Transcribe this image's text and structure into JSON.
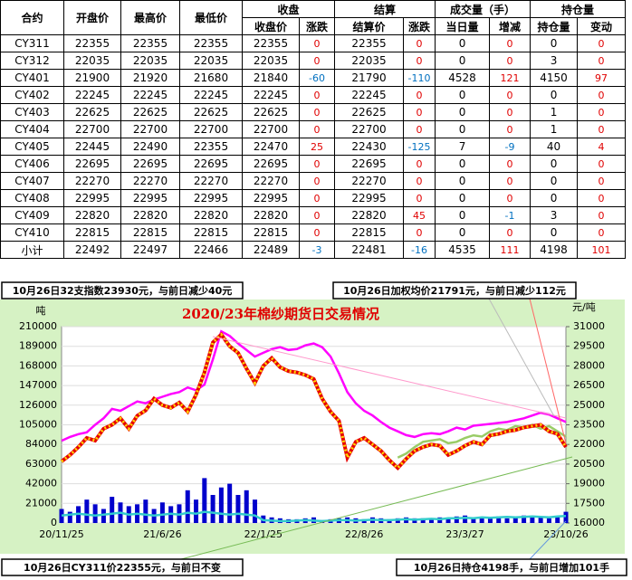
{
  "table": {
    "group_headers": [
      "收盘",
      "结算",
      "成交量（手）",
      "持仓量"
    ],
    "headers": [
      "合约",
      "开盘价",
      "最高价",
      "最低价",
      "收盘价",
      "涨跌",
      "结算价",
      "涨跌",
      "当日量",
      "增减",
      "持仓量",
      "变动"
    ],
    "rows": [
      [
        "CY311",
        22355,
        22355,
        22355,
        22355,
        0,
        22355,
        0,
        0,
        0,
        0,
        0
      ],
      [
        "CY312",
        22035,
        22035,
        22035,
        22035,
        0,
        22035,
        0,
        0,
        0,
        3,
        0
      ],
      [
        "CY401",
        21900,
        21920,
        21680,
        21840,
        -60,
        21790,
        -110,
        4528,
        121,
        4150,
        97
      ],
      [
        "CY402",
        22245,
        22245,
        22245,
        22245,
        0,
        22245,
        0,
        0,
        0,
        0,
        0
      ],
      [
        "CY403",
        22625,
        22625,
        22625,
        22625,
        0,
        22625,
        0,
        0,
        0,
        1,
        0
      ],
      [
        "CY404",
        22700,
        22700,
        22700,
        22700,
        0,
        22700,
        0,
        0,
        0,
        1,
        0
      ],
      [
        "CY405",
        22445,
        22490,
        22355,
        22470,
        25,
        22430,
        -125,
        7,
        -9,
        40,
        4
      ],
      [
        "CY406",
        22695,
        22695,
        22695,
        22695,
        0,
        22695,
        0,
        0,
        0,
        0,
        0
      ],
      [
        "CY407",
        22270,
        22270,
        22270,
        22270,
        0,
        22270,
        0,
        0,
        0,
        0,
        0
      ],
      [
        "CY408",
        22995,
        22995,
        22995,
        22995,
        0,
        22995,
        0,
        0,
        0,
        0,
        0
      ],
      [
        "CY409",
        22820,
        22820,
        22820,
        22820,
        0,
        22820,
        45,
        0,
        -1,
        3,
        0
      ],
      [
        "CY410",
        22815,
        22815,
        22815,
        22815,
        0,
        22815,
        0,
        0,
        0,
        0,
        0
      ],
      [
        "小计",
        22492,
        22497,
        22466,
        22489,
        -3,
        22481,
        -16,
        4535,
        111,
        4198,
        101
      ]
    ]
  },
  "notes": [
    "10月26日32支指数23930元，与前日减少40元",
    "10月26日加权均价21791元，与前日减少112元",
    "10月26日CY311价22355元，与前日不变",
    "10月26日持仓4198手，与前日增加101手"
  ],
  "chart_data": {
    "type": "combo",
    "title": "2020/23年棉纱期货日交易情况",
    "y_label": "吨",
    "y2_label": "元/吨",
    "categories": [
      "20/11/25",
      null,
      null,
      null,
      null,
      null,
      null,
      null,
      null,
      null,
      null,
      null,
      "21/6/26",
      null,
      null,
      null,
      null,
      null,
      null,
      null,
      null,
      null,
      null,
      null,
      "22/1/25",
      null,
      null,
      null,
      null,
      null,
      null,
      null,
      null,
      null,
      null,
      null,
      "22/8/26",
      null,
      null,
      null,
      null,
      null,
      null,
      null,
      null,
      null,
      null,
      null,
      "23/3/27",
      null,
      null,
      null,
      null,
      null,
      null,
      null,
      null,
      null,
      null,
      null,
      "23/10/26"
    ],
    "ylim": [
      0,
      210000
    ],
    "yticks": [
      0,
      21000,
      42000,
      63000,
      84000,
      105000,
      126000,
      147000,
      168000,
      189000,
      210000
    ],
    "y2lim": [
      16000,
      31000
    ],
    "y2ticks": [
      16000,
      17500,
      19000,
      20500,
      22000,
      23500,
      25000,
      26500,
      28000,
      29500,
      31000
    ],
    "series": [
      {
        "kind": "bar",
        "axis": "y",
        "color": "#0000cc",
        "values": [
          15000,
          12000,
          18000,
          25000,
          20000,
          15000,
          28000,
          22000,
          18000,
          20000,
          25000,
          15000,
          22000,
          18000,
          20000,
          35000,
          25000,
          48000,
          30000,
          38000,
          42000,
          30000,
          35000,
          25000,
          8000,
          6000,
          5000,
          4000,
          4000,
          5000,
          6000,
          3000,
          4000,
          5000,
          6000,
          5000,
          4000,
          6000,
          5000,
          4000,
          5000,
          6000,
          5000,
          5000,
          4000,
          6000,
          5000,
          7000,
          8000,
          6000,
          5000,
          6000,
          7000,
          5000,
          6000,
          8000,
          7000,
          6000,
          5000,
          7000,
          12000
        ]
      },
      {
        "kind": "line",
        "axis": "y",
        "color": "#33cccc",
        "values": [
          8000,
          9000,
          10000,
          9000,
          8000,
          9000,
          10000,
          11000,
          9000,
          10000,
          9000,
          8000,
          9000,
          10000,
          9000,
          11000,
          10000,
          12000,
          11000,
          10000,
          9000,
          10000,
          9000,
          8000,
          3000,
          2500,
          2000,
          2000,
          2500,
          3000,
          2500,
          2000,
          2500,
          3000,
          3000,
          2500,
          3000,
          3500,
          3000,
          3000,
          3500,
          4000,
          3500,
          4000,
          4500,
          4000,
          5000,
          5000,
          5500,
          5000,
          6000,
          5500,
          6000,
          6500,
          6000,
          6500,
          7000,
          6500,
          6000,
          7000,
          7500
        ]
      },
      {
        "kind": "line",
        "axis": "y",
        "color": "#ff00ff",
        "values": [
          88000,
          92000,
          95000,
          97000,
          105000,
          112000,
          122000,
          120000,
          125000,
          130000,
          128000,
          132000,
          135000,
          138000,
          140000,
          145000,
          142000,
          148000,
          175000,
          205000,
          200000,
          192000,
          185000,
          178000,
          182000,
          186000,
          188000,
          185000,
          186000,
          190000,
          192000,
          188000,
          178000,
          160000,
          140000,
          128000,
          120000,
          115000,
          108000,
          102000,
          98000,
          94000,
          92000,
          95000,
          96000,
          95000,
          98000,
          102000,
          100000,
          104000,
          105000,
          106000,
          107000,
          108000,
          110000,
          112000,
          115000,
          118000,
          116000,
          112000,
          108000
        ]
      },
      {
        "kind": "line",
        "axis": "y2",
        "color": "#99cc66",
        "values": [
          null,
          null,
          null,
          null,
          null,
          null,
          null,
          null,
          null,
          null,
          null,
          null,
          null,
          null,
          null,
          null,
          null,
          null,
          null,
          null,
          null,
          null,
          null,
          null,
          null,
          null,
          null,
          null,
          null,
          null,
          null,
          null,
          null,
          null,
          null,
          null,
          null,
          null,
          null,
          null,
          21000,
          21300,
          21800,
          22200,
          22300,
          22400,
          22100,
          22200,
          22500,
          22700,
          22600,
          23000,
          23200,
          23100,
          23400,
          23300,
          23500,
          23200,
          23400,
          23000,
          22600
        ]
      },
      {
        "kind": "dotted-line",
        "axis": "y2",
        "color": "#e60000",
        "dot_color": "#ffd700",
        "values": [
          20700,
          21200,
          21800,
          22500,
          22300,
          23200,
          23500,
          24000,
          23200,
          24200,
          24600,
          25500,
          25000,
          24800,
          25200,
          24500,
          25800,
          27500,
          29800,
          30400,
          29500,
          29000,
          27800,
          26700,
          28000,
          28600,
          27900,
          27600,
          27500,
          27300,
          27000,
          25500,
          24500,
          23800,
          21000,
          22200,
          22500,
          22000,
          21500,
          20800,
          20200,
          20900,
          21500,
          21800,
          22000,
          21900,
          21200,
          21500,
          21900,
          22200,
          22000,
          22700,
          22800,
          23000,
          23100,
          23300,
          23400,
          23500,
          23000,
          22800,
          21800
        ]
      }
    ]
  }
}
